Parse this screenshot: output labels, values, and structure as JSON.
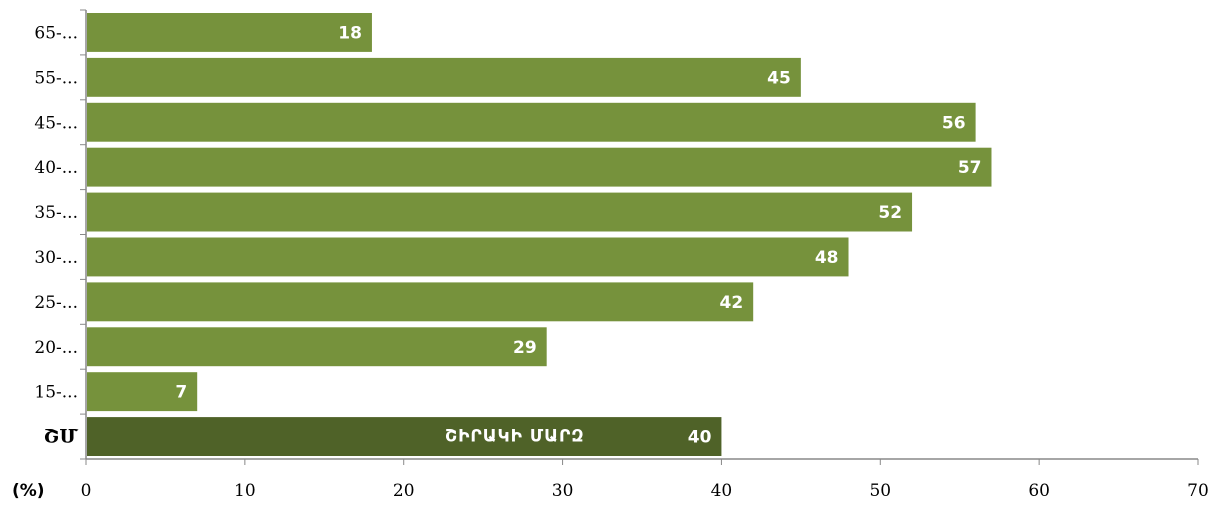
{
  "chart_data": {
    "type": "bar",
    "orientation": "horizontal",
    "categories": [
      "65-...",
      "55-...",
      "45-...",
      "40-...",
      "35-...",
      "30-...",
      "25-...",
      "20-...",
      "15-...",
      "ՇՄ"
    ],
    "values": [
      18,
      45,
      56,
      57,
      52,
      48,
      42,
      29,
      7,
      40
    ],
    "data_labels": [
      "18",
      "45",
      "56",
      "57",
      "52",
      "48",
      "42",
      "29",
      "7",
      "40"
    ],
    "highlight_index": 9,
    "highlight_inner_label": "ՇԻՐԱԿԻ ՄԱՐԶ",
    "xlim": [
      0,
      70
    ],
    "x_ticks": [
      0,
      10,
      20,
      30,
      40,
      50,
      60,
      70
    ],
    "x_tick_labels": [
      "0",
      "10",
      "20",
      "30",
      "40",
      "50",
      "60",
      "70"
    ],
    "unit_label": "(%)",
    "grid": false,
    "colors": {
      "bar": "#76923c",
      "highlight": "#4f6228",
      "axis": "#888888"
    }
  }
}
